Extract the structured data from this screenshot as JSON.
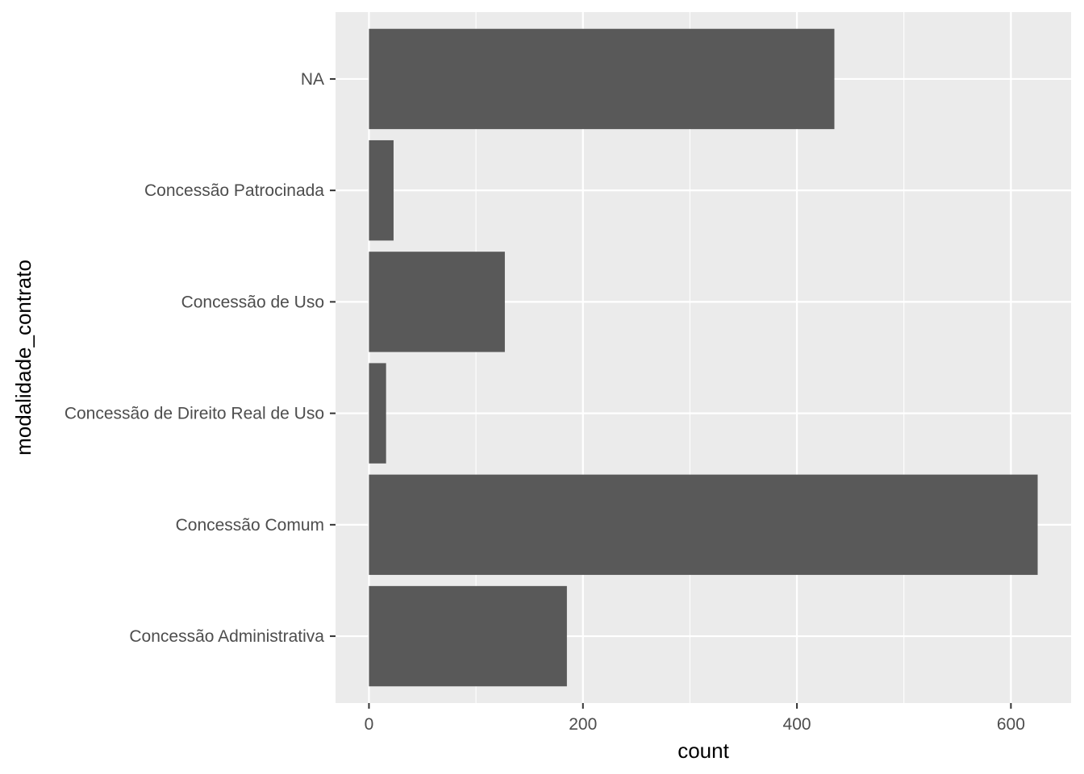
{
  "chart_data": {
    "type": "bar",
    "orientation": "horizontal",
    "categories": [
      "Concessão Administrativa",
      "Concessão Comum",
      "Concessão de Direito Real de Uso",
      "Concessão de Uso",
      "Concessão Patrocinada",
      "NA"
    ],
    "values": [
      185,
      625,
      16,
      127,
      23,
      435
    ],
    "xlabel": "count",
    "ylabel": "modalidade_contrato",
    "xlim": [
      -31.25,
      656.25
    ],
    "xticks": [
      0,
      200,
      400,
      600
    ],
    "x_minor_ticks": [
      100,
      300,
      500
    ],
    "grid": true,
    "legend": "none",
    "colors": {
      "panel_background": "#ebebeb",
      "grid": "#ffffff",
      "bar": "#595959",
      "tick_text": "#4d4d4d",
      "axis_title": "#000000",
      "tick_mark": "#333333"
    }
  }
}
